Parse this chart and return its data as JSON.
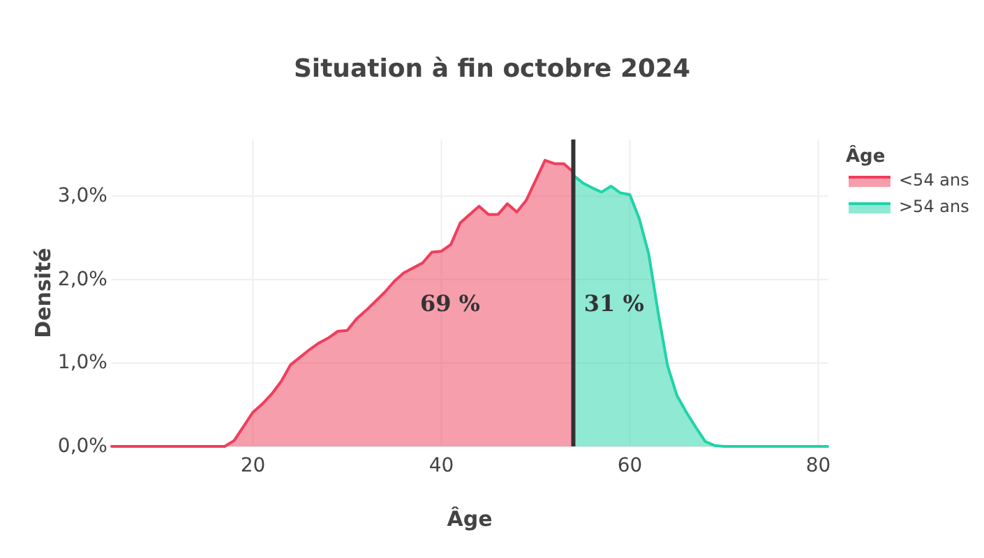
{
  "chart_data": {
    "type": "area",
    "title": "Situation à fin octobre 2024",
    "xlabel": "Âge",
    "ylabel": "Densité",
    "legend_title": "Âge",
    "xlim": [
      5,
      81
    ],
    "ylim": [
      0,
      3.68
    ],
    "xticks": [
      20,
      40,
      60,
      80
    ],
    "yticks": [
      {
        "value": 0,
        "label": "0,0%"
      },
      {
        "value": 1,
        "label": "1,0%"
      },
      {
        "value": 2,
        "label": "2,0%"
      },
      {
        "value": 3,
        "label": "3,0%"
      }
    ],
    "grid": true,
    "legend": "top right",
    "series": [
      {
        "name": "<54 ans",
        "color": "#f03e5c",
        "x": [
          5,
          6,
          7,
          8,
          9,
          10,
          11,
          12,
          13,
          14,
          15,
          16,
          17,
          18,
          19,
          20,
          21,
          22,
          23,
          24,
          25,
          26,
          27,
          28,
          29,
          30,
          31,
          32,
          33,
          34,
          35,
          36,
          37,
          38,
          39,
          40,
          41,
          42,
          43,
          44,
          45,
          46,
          47,
          48,
          49,
          50,
          51,
          52,
          53,
          54
        ],
        "values": [
          0,
          0,
          0,
          0,
          0,
          0,
          0,
          0,
          0,
          0,
          0,
          0,
          0,
          0.07,
          0.24,
          0.41,
          0.51,
          0.63,
          0.78,
          0.98,
          1.07,
          1.16,
          1.24,
          1.3,
          1.38,
          1.39,
          1.53,
          1.63,
          1.74,
          1.85,
          1.98,
          2.08,
          2.14,
          2.2,
          2.33,
          2.34,
          2.42,
          2.68,
          2.78,
          2.88,
          2.78,
          2.78,
          2.91,
          2.81,
          2.95,
          3.19,
          3.43,
          3.39,
          3.39,
          3.29
        ]
      },
      {
        "name": ">54 ans",
        "color": "#20d3a8",
        "x": [
          54,
          55,
          56,
          57,
          58,
          59,
          60,
          61,
          62,
          63,
          64,
          65,
          66,
          67,
          68,
          69,
          70,
          71,
          72,
          73,
          74,
          75,
          76,
          77,
          78,
          79,
          80,
          81
        ],
        "values": [
          3.25,
          3.16,
          3.1,
          3.05,
          3.12,
          3.04,
          3.02,
          2.73,
          2.31,
          1.61,
          0.97,
          0.61,
          0.41,
          0.23,
          0.06,
          0.01,
          0,
          0,
          0,
          0,
          0,
          0,
          0,
          0,
          0,
          0,
          0,
          0
        ]
      }
    ],
    "ref_lines": [
      {
        "axis": "x",
        "value": 54,
        "color": "#333333"
      }
    ],
    "annotations": [
      "69 %",
      "31 %"
    ]
  }
}
